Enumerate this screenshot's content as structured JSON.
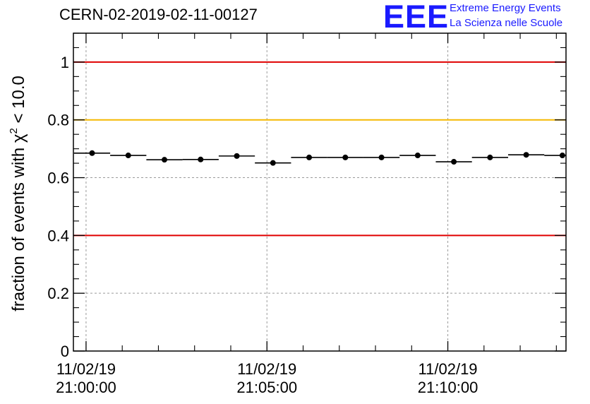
{
  "header": {
    "title": "CERN-02-2019-02-11-00127",
    "logo_mark": "EEE",
    "logo_line1": "Extreme Energy Events",
    "logo_line2": "La Scienza nelle Scuole"
  },
  "colors": {
    "threshold_red": "#e00000",
    "threshold_yellow": "#f5b800",
    "logo_blue": "#1a1aff",
    "markers": "#000000"
  },
  "chart_data": {
    "type": "scatter",
    "title": "CERN-02-2019-02-11-00127",
    "xlabel": "",
    "ylabel_main": "fraction of events with χ",
    "ylabel_sup": "2",
    "ylabel_tail": " < 10.0",
    "ylim": [
      0,
      1.1
    ],
    "x_unit": "time",
    "xlim": [
      "11/02/19 20:59:39",
      "11/02/19 21:13:16"
    ],
    "x_tick_labels": [
      {
        "date": "11/02/19",
        "time": "21:00:00"
      },
      {
        "date": "11/02/19",
        "time": "21:05:00"
      },
      {
        "date": "11/02/19",
        "time": "21:10:00"
      }
    ],
    "y_tick_labels": [
      "0",
      "0.2",
      "0.4",
      "0.6",
      "0.8",
      "1"
    ],
    "grid": true,
    "thresholds": [
      {
        "value": 1.0,
        "color": "red"
      },
      {
        "value": 0.8,
        "color": "yellow"
      },
      {
        "value": 0.4,
        "color": "red"
      }
    ],
    "series": [
      {
        "points": [
          {
            "x": "21:00:10",
            "y": 0.685,
            "x_halfwidth_s": 30
          },
          {
            "x": "21:01:10",
            "y": 0.677,
            "x_halfwidth_s": 30
          },
          {
            "x": "21:02:10",
            "y": 0.662,
            "x_halfwidth_s": 30
          },
          {
            "x": "21:03:10",
            "y": 0.663,
            "x_halfwidth_s": 30
          },
          {
            "x": "21:04:10",
            "y": 0.675,
            "x_halfwidth_s": 30
          },
          {
            "x": "21:05:10",
            "y": 0.651,
            "x_halfwidth_s": 30
          },
          {
            "x": "21:06:10",
            "y": 0.67,
            "x_halfwidth_s": 30
          },
          {
            "x": "21:07:10",
            "y": 0.67,
            "x_halfwidth_s": 30
          },
          {
            "x": "21:08:10",
            "y": 0.67,
            "x_halfwidth_s": 30
          },
          {
            "x": "21:09:10",
            "y": 0.677,
            "x_halfwidth_s": 30
          },
          {
            "x": "21:10:10",
            "y": 0.655,
            "x_halfwidth_s": 30
          },
          {
            "x": "21:11:10",
            "y": 0.67,
            "x_halfwidth_s": 30
          },
          {
            "x": "21:12:10",
            "y": 0.679,
            "x_halfwidth_s": 30
          },
          {
            "x": "21:13:10",
            "y": 0.677,
            "x_halfwidth_s": 30
          }
        ]
      }
    ]
  }
}
